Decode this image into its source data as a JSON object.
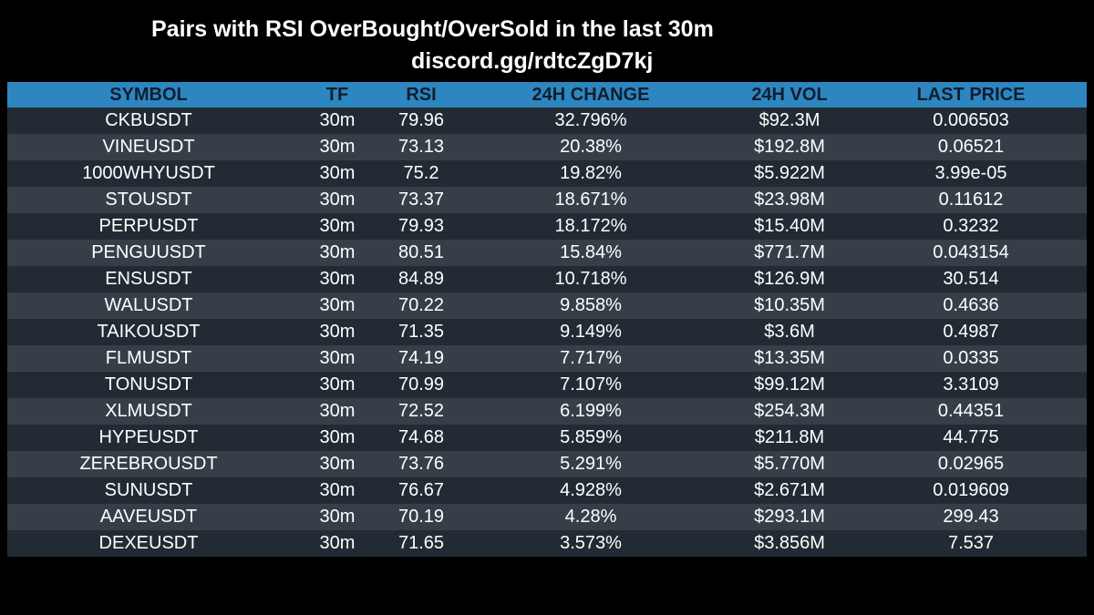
{
  "title": "Pairs with RSI OverBought/OverSold in the last 30m",
  "subtitle": "discord.gg/rdtcZgD7kj",
  "columns": {
    "symbol": "SYMBOL",
    "tf": "TF",
    "rsi": "RSI",
    "change": "24H CHANGE",
    "volume": "24H VOL",
    "price": "LAST PRICE"
  },
  "rows": [
    {
      "symbol": "CKBUSDT",
      "tf": "30m",
      "rsi": "79.96",
      "change": "32.796%",
      "volume": "$92.3M",
      "price": "0.006503"
    },
    {
      "symbol": "VINEUSDT",
      "tf": "30m",
      "rsi": "73.13",
      "change": "20.38%",
      "volume": "$192.8M",
      "price": "0.06521"
    },
    {
      "symbol": "1000WHYUSDT",
      "tf": "30m",
      "rsi": "75.2",
      "change": "19.82%",
      "volume": "$5.922M",
      "price": "3.99e-05"
    },
    {
      "symbol": "STOUSDT",
      "tf": "30m",
      "rsi": "73.37",
      "change": "18.671%",
      "volume": "$23.98M",
      "price": "0.11612"
    },
    {
      "symbol": "PERPUSDT",
      "tf": "30m",
      "rsi": "79.93",
      "change": "18.172%",
      "volume": "$15.40M",
      "price": "0.3232"
    },
    {
      "symbol": "PENGUUSDT",
      "tf": "30m",
      "rsi": "80.51",
      "change": "15.84%",
      "volume": "$771.7M",
      "price": "0.043154"
    },
    {
      "symbol": "ENSUSDT",
      "tf": "30m",
      "rsi": "84.89",
      "change": "10.718%",
      "volume": "$126.9M",
      "price": "30.514"
    },
    {
      "symbol": "WALUSDT",
      "tf": "30m",
      "rsi": "70.22",
      "change": "9.858%",
      "volume": "$10.35M",
      "price": "0.4636"
    },
    {
      "symbol": "TAIKOUSDT",
      "tf": "30m",
      "rsi": "71.35",
      "change": "9.149%",
      "volume": "$3.6M",
      "price": "0.4987"
    },
    {
      "symbol": "FLMUSDT",
      "tf": "30m",
      "rsi": "74.19",
      "change": "7.717%",
      "volume": "$13.35M",
      "price": "0.0335"
    },
    {
      "symbol": "TONUSDT",
      "tf": "30m",
      "rsi": "70.99",
      "change": "7.107%",
      "volume": "$99.12M",
      "price": "3.3109"
    },
    {
      "symbol": "XLMUSDT",
      "tf": "30m",
      "rsi": "72.52",
      "change": "6.199%",
      "volume": "$254.3M",
      "price": "0.44351"
    },
    {
      "symbol": "HYPEUSDT",
      "tf": "30m",
      "rsi": "74.68",
      "change": "5.859%",
      "volume": "$211.8M",
      "price": "44.775"
    },
    {
      "symbol": "ZEREBROUSDT",
      "tf": "30m",
      "rsi": "73.76",
      "change": "5.291%",
      "volume": "$5.770M",
      "price": "0.02965"
    },
    {
      "symbol": "SUNUSDT",
      "tf": "30m",
      "rsi": "76.67",
      "change": "4.928%",
      "volume": "$2.671M",
      "price": "0.019609"
    },
    {
      "symbol": "AAVEUSDT",
      "tf": "30m",
      "rsi": "70.19",
      "change": "4.28%",
      "volume": "$293.1M",
      "price": "299.43"
    },
    {
      "symbol": "DEXEUSDT",
      "tf": "30m",
      "rsi": "71.65",
      "change": "3.573%",
      "volume": "$3.856M",
      "price": "7.537"
    }
  ],
  "colors": {
    "background": "#000000",
    "header": "#2e86c1",
    "row_dark": "#222b33",
    "row_light": "#363f48",
    "text": "#ffffff"
  }
}
